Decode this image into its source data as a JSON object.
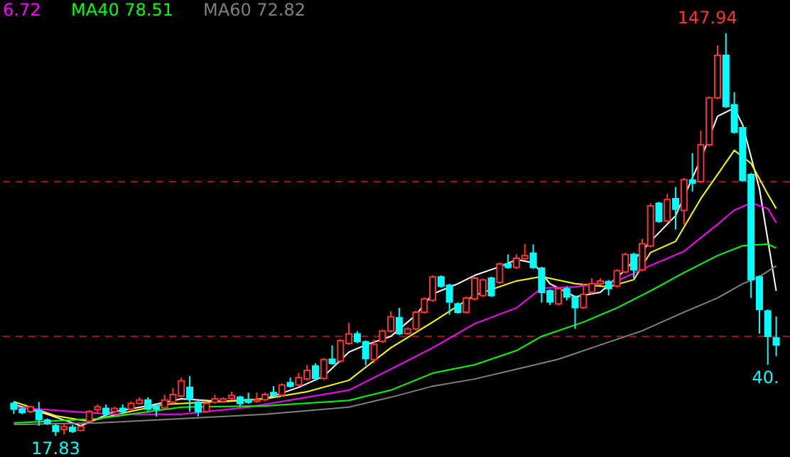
{
  "chart_data": {
    "type": "candlestick",
    "categories": [
      null,
      null,
      null,
      null,
      null,
      null,
      null,
      null,
      null,
      null,
      null,
      null,
      null,
      null,
      null,
      null,
      null,
      null,
      null,
      null,
      null,
      null,
      null,
      null,
      null,
      null,
      null,
      null,
      null,
      null,
      null,
      null,
      null,
      null,
      null,
      null,
      null,
      null,
      null,
      null,
      null,
      null,
      null,
      null,
      null,
      null,
      null,
      null,
      null,
      null,
      null,
      null,
      null,
      null,
      null,
      null,
      null,
      null,
      null,
      null,
      null,
      null,
      null,
      null,
      null,
      null,
      null,
      null,
      null,
      null,
      null,
      null,
      null,
      null,
      null,
      null,
      null,
      null,
      null,
      null,
      null,
      null,
      null,
      null,
      null,
      null,
      null,
      null,
      null,
      null,
      null,
      null
    ],
    "ohlc": [
      [
        28.3,
        29.0,
        24.9,
        26.5
      ],
      [
        26.5,
        27.0,
        24.8,
        25.4
      ],
      [
        25.7,
        27.6,
        25.2,
        27.2
      ],
      [
        26.0,
        28.8,
        21.1,
        23.1
      ],
      [
        22.9,
        23.5,
        21.4,
        21.9
      ],
      [
        21.1,
        21.8,
        17.83,
        19.3
      ],
      [
        19.9,
        21.7,
        18.3,
        20.8
      ],
      [
        20.6,
        21.4,
        18.8,
        19.3
      ],
      [
        19.6,
        21.2,
        19.2,
        20.8
      ],
      [
        22.6,
        26.2,
        22.2,
        25.7
      ],
      [
        26.3,
        28.0,
        24.9,
        27.2
      ],
      [
        26.7,
        28.0,
        24.1,
        24.9
      ],
      [
        25.7,
        27.2,
        25.2,
        26.7
      ],
      [
        26.7,
        28.0,
        25.2,
        25.7
      ],
      [
        26.5,
        29.0,
        26.0,
        28.3
      ],
      [
        28.3,
        30.3,
        27.9,
        29.4
      ],
      [
        29.4,
        30.3,
        26.0,
        26.5
      ],
      [
        27.5,
        28.0,
        24.1,
        26.5
      ],
      [
        26.9,
        31.1,
        26.4,
        29.4
      ],
      [
        28.7,
        33.3,
        28.2,
        31.2
      ],
      [
        30.7,
        36.7,
        30.2,
        35.6
      ],
      [
        33.5,
        37.1,
        25.7,
        29.8
      ],
      [
        28.7,
        29.2,
        24.1,
        25.7
      ],
      [
        25.7,
        28.8,
        25.2,
        28.3
      ],
      [
        28.7,
        31.1,
        28.2,
        29.8
      ],
      [
        29.0,
        30.3,
        28.5,
        29.8
      ],
      [
        29.9,
        32.1,
        29.4,
        30.9
      ],
      [
        30.3,
        30.8,
        27.2,
        28.3
      ],
      [
        29.5,
        31.8,
        28.2,
        28.7
      ],
      [
        29.0,
        31.8,
        28.5,
        29.5
      ],
      [
        29.5,
        31.8,
        29.0,
        31.2
      ],
      [
        31.8,
        33.9,
        30.4,
        30.9
      ],
      [
        31.0,
        34.8,
        30.5,
        34.3
      ],
      [
        35.0,
        36.7,
        33.4,
        33.9
      ],
      [
        34.3,
        38.2,
        33.8,
        36.7
      ],
      [
        36.2,
        40.7,
        35.7,
        39.0
      ],
      [
        40.4,
        41.3,
        35.6,
        36.4
      ],
      [
        36.4,
        43.0,
        35.9,
        42.5
      ],
      [
        42.6,
        47.1,
        40.8,
        41.3
      ],
      [
        42.0,
        49.1,
        41.5,
        48.6
      ],
      [
        47.7,
        54.4,
        47.2,
        50.8
      ],
      [
        50.8,
        51.7,
        47.8,
        48.3
      ],
      [
        48.2,
        48.7,
        40.7,
        42.8
      ],
      [
        42.5,
        49.0,
        41.3,
        47.4
      ],
      [
        48.3,
        52.2,
        47.8,
        51.7
      ],
      [
        51.7,
        58.1,
        51.2,
        56.3
      ],
      [
        56.0,
        59.2,
        50.4,
        50.9
      ],
      [
        50.9,
        52.9,
        50.4,
        52.4
      ],
      [
        52.4,
        58.3,
        51.9,
        57.8
      ],
      [
        57.8,
        62.6,
        57.3,
        62.1
      ],
      [
        61.6,
        69.7,
        61.1,
        69.2
      ],
      [
        69.2,
        69.7,
        65.7,
        66.2
      ],
      [
        66.5,
        67.0,
        57.0,
        61.1
      ],
      [
        60.5,
        61.0,
        57.3,
        57.8
      ],
      [
        57.8,
        62.9,
        57.3,
        62.4
      ],
      [
        62.1,
        69.3,
        61.6,
        68.8
      ],
      [
        63.2,
        68.7,
        62.7,
        68.2
      ],
      [
        68.8,
        69.3,
        62.7,
        63.2
      ],
      [
        67.4,
        73.9,
        66.9,
        73.4
      ],
      [
        73.4,
        76.5,
        71.8,
        72.3
      ],
      [
        72.3,
        76.5,
        71.8,
        75.2
      ],
      [
        75.1,
        79.9,
        74.6,
        76.1
      ],
      [
        76.9,
        79.7,
        71.8,
        72.3
      ],
      [
        72.0,
        72.5,
        60.9,
        64.2
      ],
      [
        64.7,
        65.2,
        60.1,
        61.1
      ],
      [
        60.5,
        65.9,
        60.0,
        65.4
      ],
      [
        65.4,
        66.2,
        61.6,
        62.7
      ],
      [
        62.7,
        63.2,
        52.4,
        59.3
      ],
      [
        59.3,
        67.0,
        58.8,
        63.6
      ],
      [
        64.2,
        68.8,
        63.7,
        67.0
      ],
      [
        67.0,
        68.8,
        66.5,
        67.9
      ],
      [
        67.7,
        68.2,
        63.2,
        65.4
      ],
      [
        66.2,
        71.7,
        65.7,
        71.2
      ],
      [
        70.8,
        77.0,
        70.3,
        76.5
      ],
      [
        76.5,
        77.0,
        68.8,
        71.5
      ],
      [
        71.5,
        81.5,
        71.0,
        79.9
      ],
      [
        79.2,
        93.0,
        78.7,
        92.2
      ],
      [
        93.0,
        93.5,
        86.7,
        87.2
      ],
      [
        87.3,
        96.0,
        86.8,
        94.2
      ],
      [
        94.5,
        98.3,
        84.5,
        91.1
      ],
      [
        90.7,
        101.2,
        86.1,
        100.6
      ],
      [
        100.5,
        109.2,
        96.8,
        99.5
      ],
      [
        100.0,
        116.5,
        99.5,
        111.9
      ],
      [
        111.9,
        127.6,
        111.4,
        127.1
      ],
      [
        127.1,
        144.0,
        126.6,
        140.8
      ],
      [
        140.8,
        147.94,
        123.8,
        124.3
      ],
      [
        124.8,
        128.9,
        115.5,
        116.0
      ],
      [
        117.4,
        117.9,
        99.9,
        100.4
      ],
      [
        102.3,
        102.8,
        62.4,
        68.3
      ],
      [
        69.2,
        69.7,
        50.9,
        58.7
      ],
      [
        58.2,
        58.7,
        40.8,
        50.0
      ],
      [
        49.5,
        56.4,
        43.6,
        47.2
      ]
    ],
    "series": [
      {
        "type": "line",
        "color": "#ffffff",
        "values": [
          28.0,
          null,
          null,
          null,
          24.8,
          null,
          null,
          null,
          21.1,
          null,
          null,
          null,
          25.7,
          null,
          null,
          null,
          27.5,
          null,
          null,
          null,
          29.8,
          null,
          null,
          null,
          null,
          28.9,
          null,
          null,
          null,
          null,
          29.8,
          null,
          null,
          null,
          33.5,
          null,
          null,
          37.1,
          null,
          null,
          44.9,
          null,
          47.2,
          null,
          null,
          50.0,
          null,
          null,
          56.9,
          null,
          63.7,
          null,
          null,
          67.0,
          null,
          69.7,
          null,
          null,
          72.5,
          null,
          74.8,
          null,
          73.8,
          null,
          67.0,
          null,
          null,
          62.8,
          null,
          null,
          64.2,
          null,
          null,
          71.5,
          null,
          null,
          80.7,
          null,
          null,
          89.0,
          null,
          null,
          107.3,
          null,
          121.1,
          null,
          123.8,
          118.3,
          null,
          97.7,
          null,
          64.7
        ]
      },
      {
        "type": "line",
        "color": "#ffff00",
        "values": [
          28.9,
          null,
          null,
          null,
          null,
          24.3,
          null,
          null,
          null,
          22.5,
          null,
          null,
          null,
          25.2,
          null,
          null,
          null,
          null,
          28.0,
          null,
          null,
          null,
          null,
          null,
          28.9,
          null,
          null,
          null,
          null,
          null,
          29.8,
          null,
          null,
          null,
          null,
          32.1,
          null,
          null,
          null,
          null,
          35.8,
          null,
          null,
          null,
          null,
          46.3,
          null,
          null,
          null,
          null,
          54.6,
          null,
          null,
          null,
          null,
          63.3,
          null,
          null,
          null,
          null,
          67.9,
          null,
          null,
          69.3,
          null,
          null,
          null,
          67.0,
          null,
          null,
          null,
          66.0,
          null,
          null,
          68.3,
          null,
          77.1,
          null,
          null,
          80.7,
          null,
          null,
          94.5,
          null,
          102.3,
          null,
          110.1,
          null,
          105.9,
          null,
          95.9,
          91.3
        ]
      },
      {
        "type": "line",
        "name": "6.72",
        "color": "#ff00ff",
        "values": [
          27.1,
          null,
          null,
          null,
          null,
          null,
          null,
          25.7,
          null,
          null,
          null,
          null,
          24.8,
          null,
          null,
          null,
          null,
          null,
          null,
          null,
          24.8,
          null,
          null,
          null,
          null,
          null,
          null,
          null,
          27.1,
          null,
          null,
          null,
          null,
          null,
          null,
          30.3,
          null,
          null,
          null,
          null,
          32.6,
          null,
          null,
          null,
          null,
          39.4,
          null,
          null,
          null,
          null,
          46.3,
          null,
          null,
          null,
          null,
          54.1,
          null,
          null,
          null,
          null,
          59.2,
          null,
          null,
          65.6,
          null,
          null,
          null,
          66.0,
          null,
          null,
          null,
          null,
          67.9,
          null,
          null,
          null,
          72.9,
          null,
          null,
          null,
          77.5,
          null,
          null,
          null,
          86.2,
          null,
          90.8,
          null,
          93.1,
          null,
          91.3,
          86.7
        ]
      },
      {
        "type": "line",
        "name": "MA40 78.51",
        "color": "#00ff00",
        "values": [
          22.0,
          null,
          null,
          null,
          null,
          null,
          null,
          null,
          null,
          null,
          23.4,
          null,
          null,
          null,
          null,
          null,
          null,
          null,
          null,
          null,
          27.1,
          null,
          null,
          null,
          null,
          null,
          null,
          null,
          null,
          null,
          27.5,
          null,
          null,
          null,
          null,
          null,
          null,
          null,
          null,
          null,
          29.3,
          null,
          null,
          null,
          null,
          32.6,
          null,
          null,
          null,
          null,
          38.1,
          null,
          null,
          null,
          null,
          40.8,
          null,
          null,
          null,
          null,
          45.4,
          null,
          null,
          50.0,
          null,
          null,
          null,
          null,
          54.6,
          null,
          null,
          null,
          59.2,
          null,
          null,
          null,
          64.7,
          null,
          null,
          null,
          70.6,
          null,
          null,
          null,
          76.1,
          null,
          null,
          79.3,
          null,
          null,
          79.8,
          78.5
        ]
      },
      {
        "type": "line",
        "name": "MA60 72.82",
        "color": "#808080",
        "values": [
          21.5,
          null,
          null,
          null,
          null,
          null,
          null,
          null,
          null,
          null,
          22.0,
          null,
          null,
          null,
          null,
          null,
          null,
          null,
          null,
          null,
          23.4,
          null,
          null,
          null,
          null,
          null,
          null,
          null,
          null,
          null,
          24.8,
          null,
          null,
          null,
          null,
          null,
          null,
          null,
          null,
          null,
          27.1,
          null,
          null,
          null,
          null,
          30.3,
          null,
          null,
          null,
          null,
          33.9,
          null,
          null,
          null,
          null,
          36.2,
          null,
          null,
          null,
          null,
          39.4,
          null,
          null,
          null,
          null,
          42.6,
          null,
          null,
          null,
          null,
          47.2,
          null,
          null,
          null,
          null,
          51.8,
          null,
          null,
          null,
          null,
          57.8,
          null,
          null,
          null,
          62.4,
          null,
          null,
          67.0,
          null,
          69.3,
          null,
          72.8
        ]
      }
    ],
    "ylim": [
      11.0,
      158.7
    ],
    "ref_lines": [
      {
        "axis": "y",
        "value": 100,
        "color": "#a01010",
        "line_style": "dashed"
      },
      {
        "axis": "y",
        "value": 50,
        "color": "#a01010",
        "line_style": "dashed"
      }
    ],
    "annotations": [
      "147.94",
      "17.83",
      "40."
    ],
    "legend": "top left",
    "grid": false,
    "marker": "none",
    "line_style": "solid"
  }
}
